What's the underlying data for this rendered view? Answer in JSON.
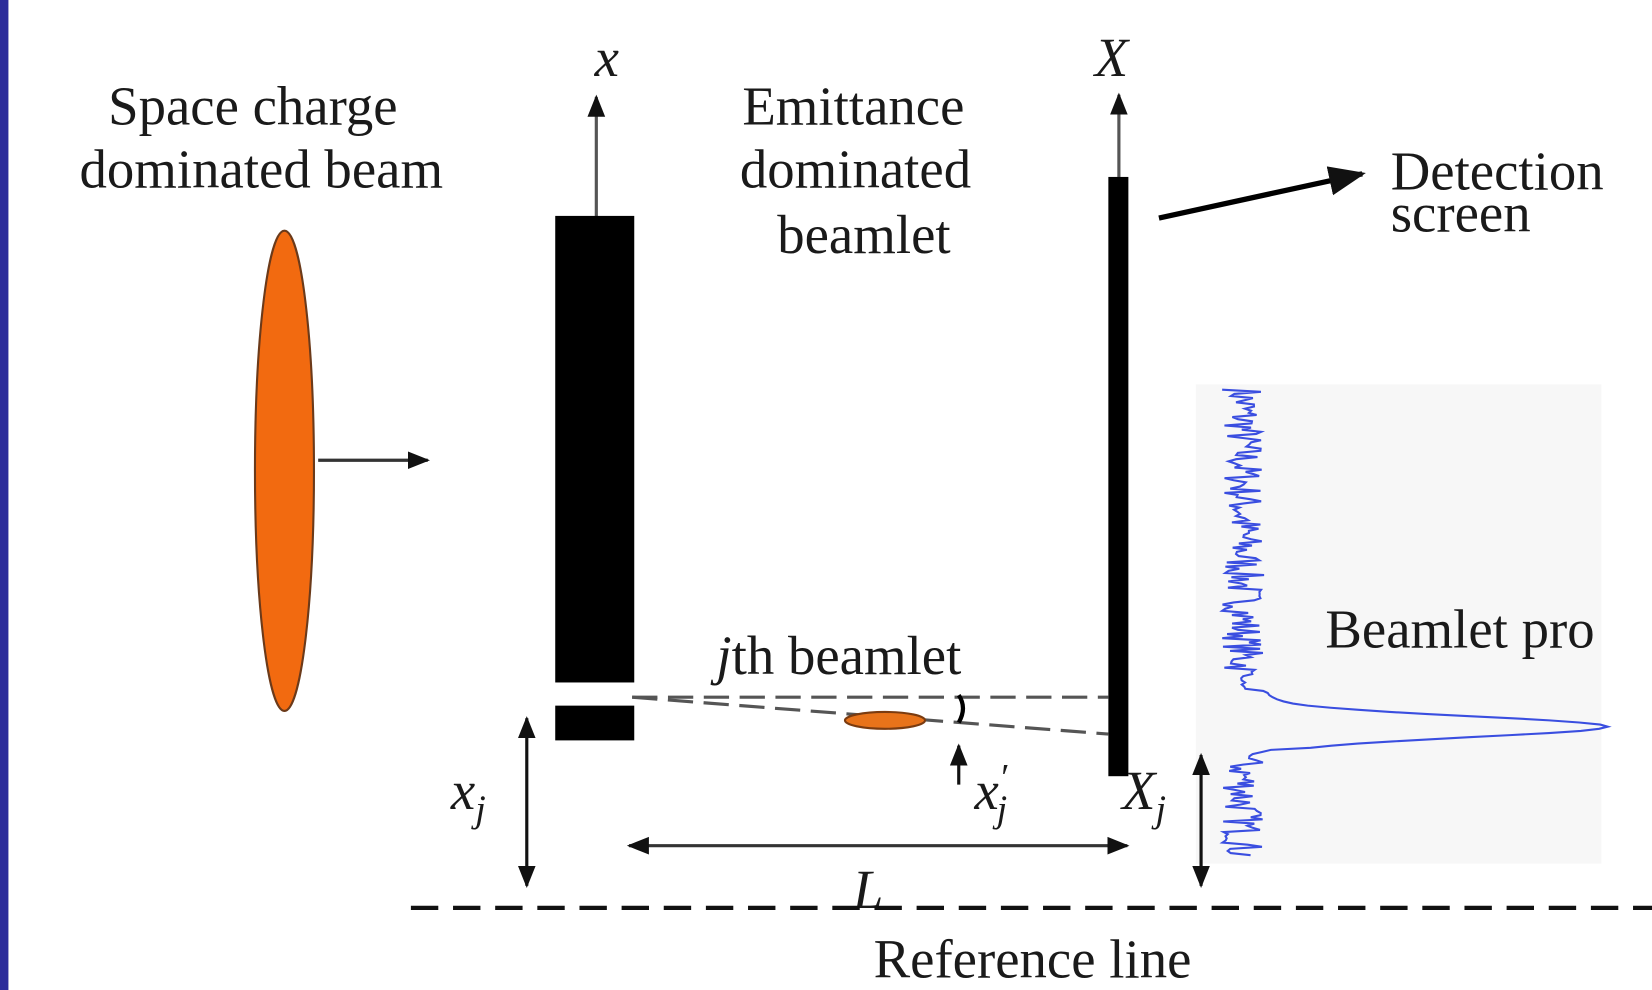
{
  "labels": {
    "beam": [
      "Space charge",
      "dominated beam"
    ],
    "x_axis": "x",
    "X_axis": "X",
    "beamlet": [
      "Emittance",
      "dominated",
      "beamlet"
    ],
    "screen": [
      "Detection",
      "screen"
    ],
    "profile": "Beamlet pro",
    "jth": {
      "italic": "j",
      "rest": "th beamlet"
    },
    "xj": {
      "base": "x",
      "sub": "j"
    },
    "xpj": {
      "base": "x",
      "prime": "′",
      "sub": "j"
    },
    "Xj": {
      "base": "X",
      "sub": "j"
    },
    "L": "L",
    "reference": "Reference line"
  }
}
